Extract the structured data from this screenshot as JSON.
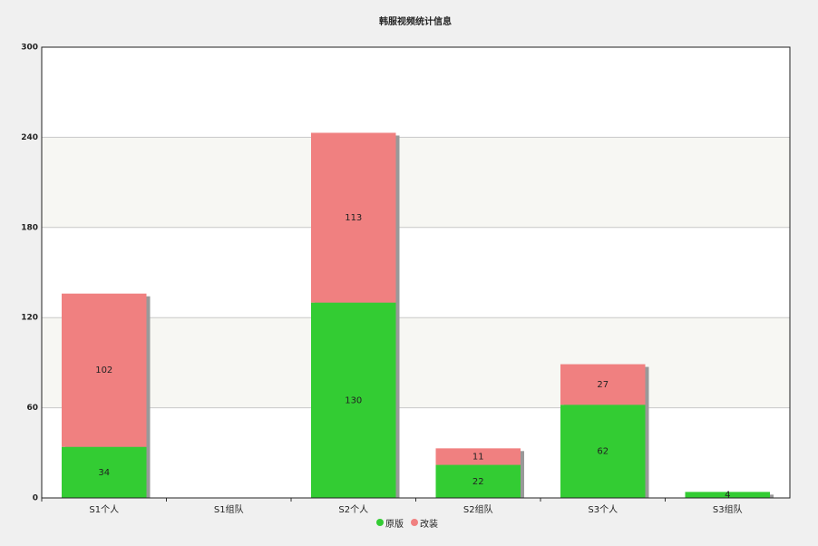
{
  "chart_data": {
    "type": "stacked-bar",
    "title": "韩服视频统计信息",
    "categories": [
      "S1个人",
      "S1组队",
      "S2个人",
      "S2组队",
      "S3个人",
      "S3组队"
    ],
    "series": [
      {
        "name": "原版",
        "color": "#33cc33",
        "values": [
          34,
          null,
          130,
          22,
          62,
          4
        ]
      },
      {
        "name": "改装",
        "color": "#f08080",
        "values": [
          102,
          null,
          113,
          11,
          27,
          null
        ]
      }
    ],
    "ylim": [
      0,
      300
    ],
    "yticks": [
      0,
      60,
      120,
      180,
      240,
      300
    ],
    "grid": true,
    "legend": "bottom"
  }
}
